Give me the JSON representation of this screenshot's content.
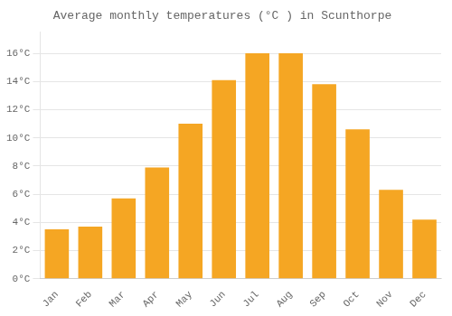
{
  "chart_data": {
    "type": "bar",
    "title": "Average monthly temperatures (°C ) in Scunthorpe",
    "categories": [
      "Jan",
      "Feb",
      "Mar",
      "Apr",
      "May",
      "Jun",
      "Jul",
      "Aug",
      "Sep",
      "Oct",
      "Nov",
      "Dec"
    ],
    "values": [
      3.5,
      3.7,
      5.7,
      7.9,
      11.0,
      14.1,
      16.0,
      16.0,
      13.8,
      10.6,
      6.3,
      4.2
    ],
    "color": "#F5A623",
    "ylim": [
      0,
      17.5
    ],
    "yticks": [
      {
        "value": 0,
        "label": "0°C"
      },
      {
        "value": 2,
        "label": "2°C"
      },
      {
        "value": 4,
        "label": "4°C"
      },
      {
        "value": 6,
        "label": "6°C"
      },
      {
        "value": 8,
        "label": "8°C"
      },
      {
        "value": 10,
        "label": "10°C"
      },
      {
        "value": 12,
        "label": "12°C"
      },
      {
        "value": 14,
        "label": "14°C"
      },
      {
        "value": 16,
        "label": "16°C"
      }
    ],
    "grid": true
  }
}
